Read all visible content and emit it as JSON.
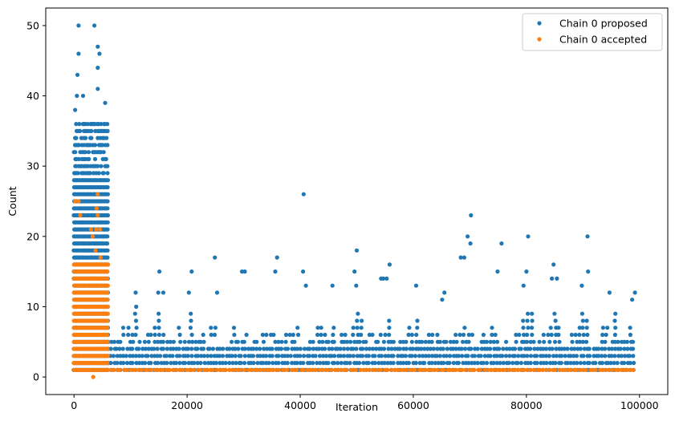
{
  "chart_data": {
    "type": "scatter",
    "xlabel": "Iteration",
    "ylabel": "Count",
    "xlim": [
      -5000,
      105000
    ],
    "ylim": [
      -2.5,
      52.5
    ],
    "xticks": [
      0,
      20000,
      40000,
      60000,
      80000,
      100000
    ],
    "xtick_labels": [
      "0",
      "20000",
      "40000",
      "60000",
      "80000",
      "100000"
    ],
    "yticks": [
      0,
      10,
      20,
      30,
      40,
      50
    ],
    "ytick_labels": [
      "0",
      "10",
      "20",
      "30",
      "40",
      "50"
    ],
    "grid": false,
    "legend_position": "top-right",
    "series": [
      {
        "name": "Chain 0 proposed",
        "color": "#1f77b4",
        "regions": [
          {
            "x_start": 0,
            "x_end": 6000,
            "y_min": 1,
            "y_max": 36
          },
          {
            "x_start": 6000,
            "x_end": 99000,
            "y_min": 1,
            "y_max": 5
          }
        ],
        "outliers": [
          [
            800,
            50
          ],
          [
            3600,
            50
          ],
          [
            4200,
            47
          ],
          [
            800,
            46
          ],
          [
            4500,
            46
          ],
          [
            4200,
            44
          ],
          [
            600,
            43
          ],
          [
            4200,
            41
          ],
          [
            500,
            40
          ],
          [
            1600,
            40
          ],
          [
            5500,
            39
          ],
          [
            200,
            38
          ],
          [
            40600,
            26
          ],
          [
            70200,
            23
          ],
          [
            69600,
            20
          ],
          [
            80300,
            20
          ],
          [
            90800,
            20
          ],
          [
            75600,
            19
          ],
          [
            70100,
            19
          ],
          [
            50000,
            18
          ],
          [
            24900,
            17
          ],
          [
            35900,
            17
          ],
          [
            68400,
            17
          ],
          [
            69000,
            17
          ],
          [
            55800,
            16
          ],
          [
            84800,
            16
          ],
          [
            74900,
            15
          ],
          [
            15100,
            15
          ],
          [
            20800,
            15
          ],
          [
            30200,
            15
          ],
          [
            29700,
            15
          ],
          [
            35600,
            15
          ],
          [
            40500,
            15
          ],
          [
            49600,
            15
          ],
          [
            80000,
            15
          ],
          [
            90900,
            15
          ],
          [
            55300,
            14
          ],
          [
            54700,
            14
          ],
          [
            54300,
            14
          ],
          [
            85400,
            14
          ],
          [
            84500,
            14
          ],
          [
            45700,
            13
          ],
          [
            49900,
            13
          ],
          [
            41000,
            13
          ],
          [
            60500,
            13
          ],
          [
            79500,
            13
          ],
          [
            89800,
            13
          ],
          [
            65500,
            12
          ],
          [
            94700,
            12
          ],
          [
            99200,
            12
          ],
          [
            10900,
            12
          ],
          [
            14900,
            12
          ],
          [
            15800,
            12
          ],
          [
            20300,
            12
          ],
          [
            25300,
            12
          ],
          [
            65100,
            11
          ],
          [
            98700,
            11
          ]
        ]
      },
      {
        "name": "Chain 0 accepted",
        "color": "#ff7f0e",
        "regions": [
          {
            "x_start": 0,
            "x_end": 6000,
            "y_min": 1,
            "y_max": 16
          },
          {
            "x_start": 6000,
            "x_end": 99000,
            "y_min": 1,
            "y_max": 1
          }
        ],
        "outliers": [
          [
            4200,
            26
          ],
          [
            200,
            25
          ],
          [
            800,
            25
          ],
          [
            4000,
            24
          ],
          [
            1100,
            23
          ],
          [
            4200,
            23
          ],
          [
            3000,
            21
          ],
          [
            3900,
            21
          ],
          [
            4600,
            21
          ],
          [
            3300,
            20
          ],
          [
            3800,
            18
          ],
          [
            4700,
            17
          ],
          [
            3400,
            0
          ]
        ]
      }
    ]
  }
}
